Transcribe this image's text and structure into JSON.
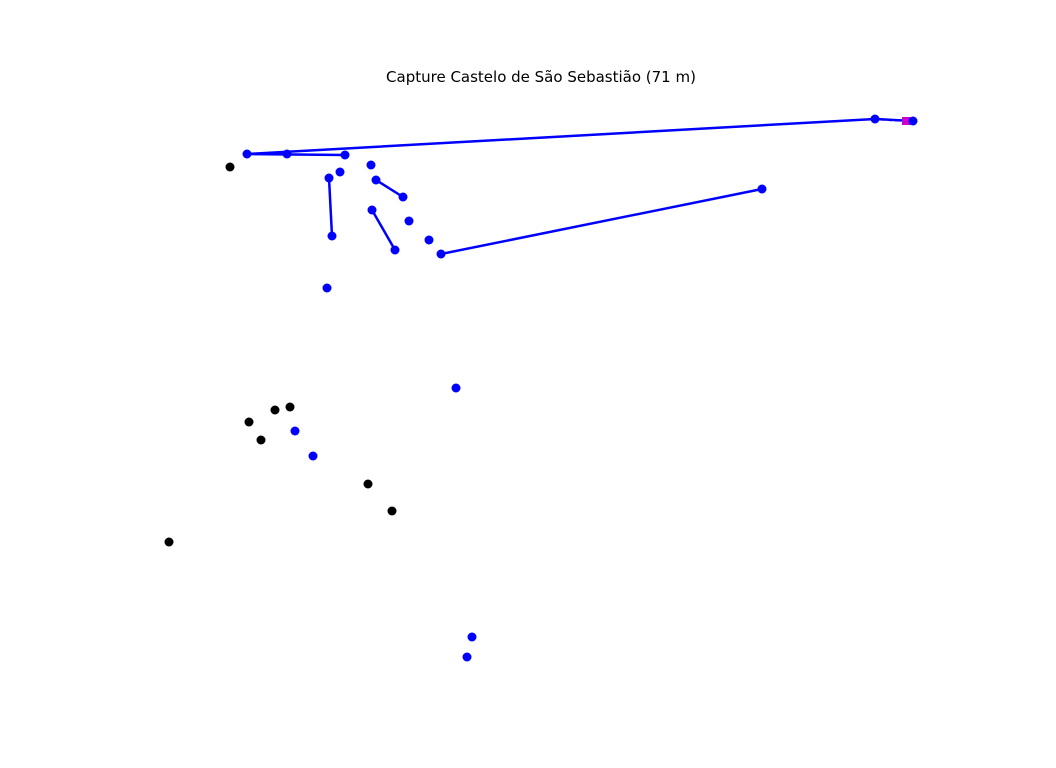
{
  "title": "Capture Castelo de São Sebastião (71 m)",
  "colors": {
    "route": "#0000ff",
    "waypoint": "#0000ff",
    "unvisited": "#000000",
    "target_link": "#cc00cc",
    "target_marker": "#cc00cc"
  },
  "route_segments": [
    {
      "from": "r1",
      "to": "r2"
    },
    {
      "from": "r2",
      "to": "r3"
    },
    {
      "from": "r3",
      "to": "r4"
    },
    {
      "from": "r5",
      "to": "r6"
    },
    {
      "from": "r7",
      "to": "r8"
    },
    {
      "from": "r9",
      "to": "r10"
    },
    {
      "from": "r11",
      "to": "r12"
    }
  ],
  "target_link": {
    "from": "r4",
    "to": "target"
  }
}
